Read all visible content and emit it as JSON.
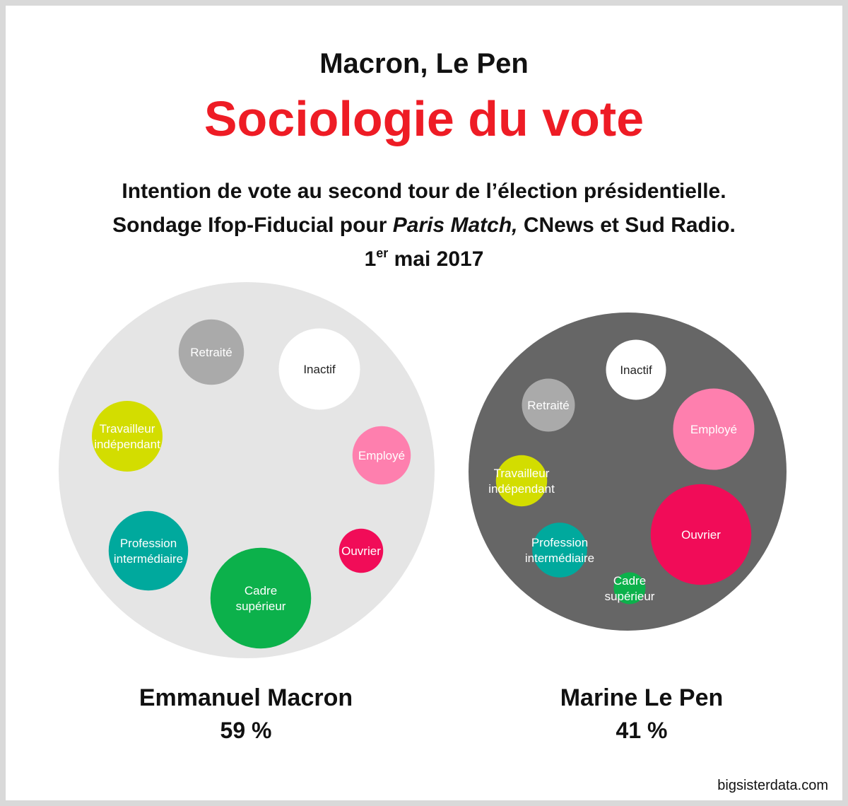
{
  "header": {
    "supertitle": "Macron, Le Pen",
    "title": "Sociologie du vote",
    "subtitle_line1": "Intention de vote au second tour de l’élection présidentielle.",
    "subtitle_line2_a": "Sondage Ifop-Fiducial pour ",
    "subtitle_line2_italic": "Paris Match,",
    "subtitle_line2_b": " CNews et Sud Radio.",
    "date_day": "1",
    "date_sup": "er",
    "date_rest": " mai 2017"
  },
  "colors": {
    "title": "#ee1c25",
    "macron_bg": "#e5e5e5",
    "lepen_bg": "#666666",
    "Retraité": "#aaaaaa",
    "Inactif": "#ffffff",
    "Employé": "#fe7fae",
    "Ouvrier": "#f10c58",
    "Cadre supérieur": "#0cb14b",
    "Profession intermédiaire": "#00a99d",
    "Travailleur indépendant": "#d3dd00"
  },
  "chart_data": {
    "type": "bubble",
    "title": "Sociologie du vote",
    "series": [
      {
        "name": "Emmanuel Macron",
        "share": 59,
        "share_label": "59 %",
        "categories": [
          "Retraité",
          "Inactif",
          "Travailleur indépendant",
          "Employé",
          "Profession intermédiaire",
          "Ouvrier",
          "Cadre supérieur"
        ],
        "labels": [
          "Retraité",
          "Inactif",
          "Travailleur\nindépendant",
          "Employé",
          "Profession\nintermédiaire",
          "Ouvrier",
          "Cadre\nsupérieur"
        ],
        "values": [
          3.7,
          4.6,
          4.0,
          3.3,
          4.5,
          2.5,
          5.7
        ]
      },
      {
        "name": "Marine Le Pen",
        "share": 41,
        "share_label": "41 %",
        "categories": [
          "Inactif",
          "Retraité",
          "Employé",
          "Travailleur indépendant",
          "Ouvrier",
          "Profession intermédiaire",
          "Cadre supérieur"
        ],
        "labels": [
          "Inactif",
          "Retraité",
          "Employé",
          "Travailleur\nindépendant",
          "Ouvrier",
          "Profession\nintermédiaire",
          "Cadre\nsupérieur"
        ],
        "values": [
          3.4,
          3.0,
          4.6,
          2.9,
          5.7,
          3.1,
          1.8
        ]
      }
    ]
  },
  "source": "bigsisterdata.com"
}
